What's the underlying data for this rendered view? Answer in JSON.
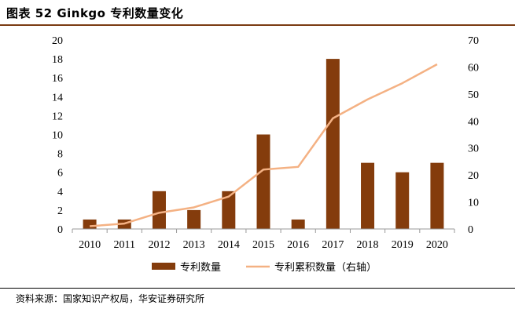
{
  "title": "图表 52 Ginkgo 专利数量变化",
  "source": "资料来源：国家知识产权局，华安证券研究所",
  "colors": {
    "bar": "#843c0c",
    "line": "#f4b183",
    "title_rule": "#7a3b12"
  },
  "chart_data": {
    "type": "bar",
    "categories": [
      "2010",
      "2011",
      "2012",
      "2013",
      "2014",
      "2015",
      "2016",
      "2017",
      "2018",
      "2019",
      "2020"
    ],
    "series": [
      {
        "name": "专利数量",
        "type": "bar",
        "axis": "left",
        "values": [
          1,
          1,
          4,
          2,
          4,
          10,
          1,
          18,
          7,
          6,
          7
        ]
      },
      {
        "name": "专利累积数量（右轴）",
        "type": "line",
        "axis": "right",
        "values": [
          1,
          2,
          6,
          8,
          12,
          22,
          23,
          41,
          48,
          54,
          61
        ]
      }
    ],
    "ylim_left": [
      0,
      20
    ],
    "yticks_left": [
      0,
      2,
      4,
      6,
      8,
      10,
      12,
      14,
      16,
      18,
      20
    ],
    "ylim_right": [
      0,
      70
    ],
    "yticks_right": [
      0,
      10,
      20,
      30,
      40,
      50,
      60,
      70
    ],
    "grid": false,
    "legend_position": "bottom"
  }
}
